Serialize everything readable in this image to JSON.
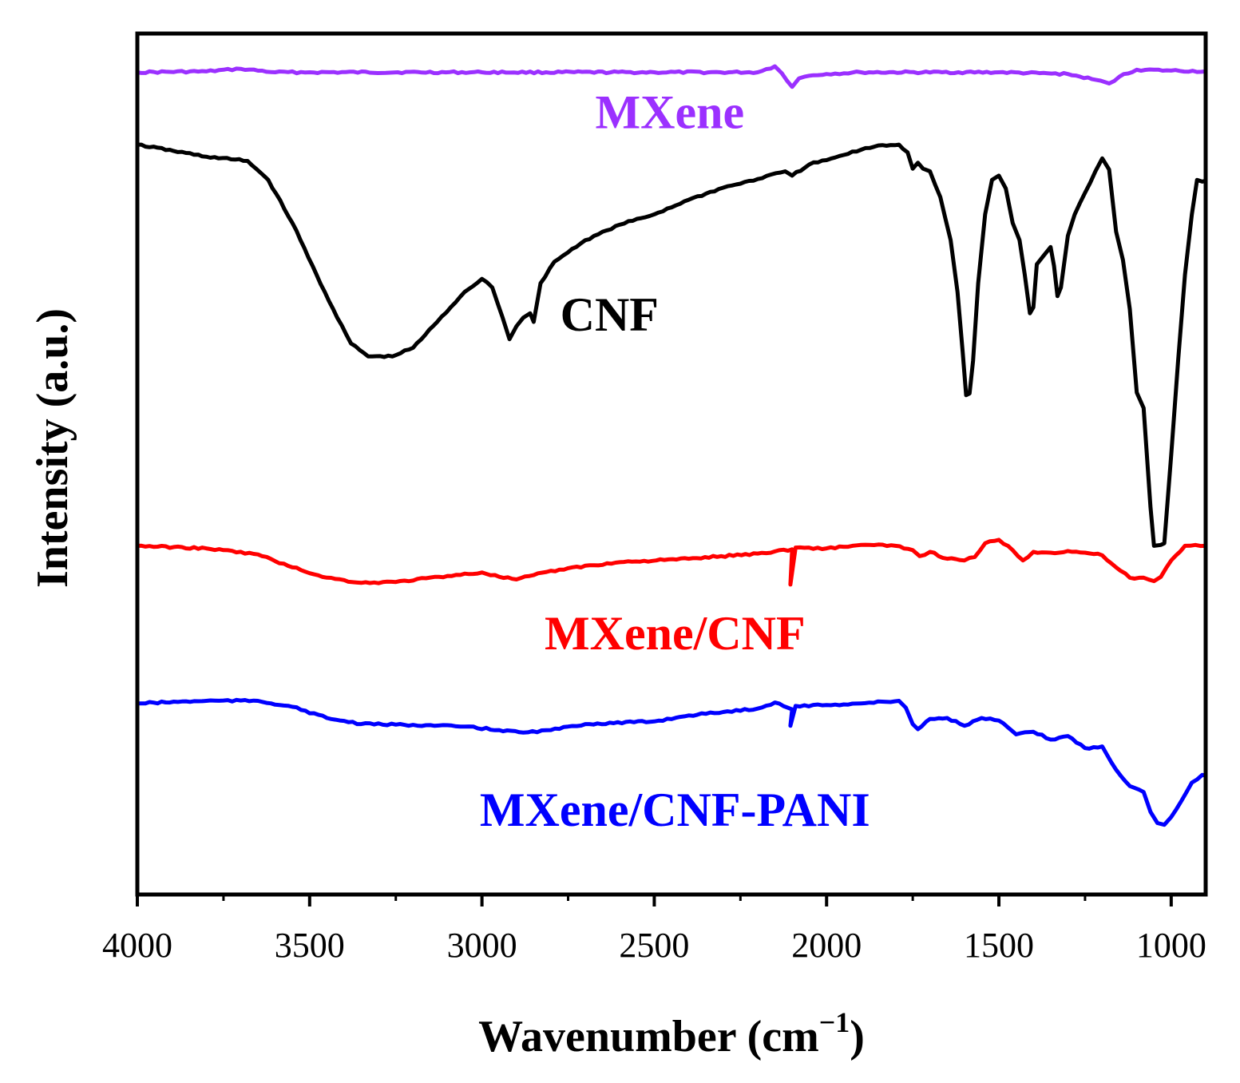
{
  "chart_data": {
    "type": "line",
    "title": "",
    "xlabel": "Wavenumber (cm",
    "xlabel_sup": "−1",
    "xlabel_close": ")",
    "ylabel": "Intensity (a.u.)",
    "xlim": [
      4000,
      900
    ],
    "x_reversed": true,
    "ylim": [
      0,
      100
    ],
    "y_ticks_visible": false,
    "grid": false,
    "legend": "inline labels",
    "x_ticks": [
      4000,
      3500,
      3000,
      2500,
      2000,
      1500,
      1000
    ],
    "x_tick_labels": [
      "4000",
      "3500",
      "3000",
      "2500",
      "2000",
      "1500",
      "1000"
    ],
    "series": [
      {
        "name": "MXene",
        "color": "#9b30ff",
        "label": "MXene",
        "label_x": 2455,
        "label_y": 89,
        "points": [
          [
            4000,
            95.5
          ],
          [
            3800,
            95.6
          ],
          [
            3700,
            95.9
          ],
          [
            3600,
            95.5
          ],
          [
            3500,
            95.5
          ],
          [
            3000,
            95.5
          ],
          [
            2500,
            95.5
          ],
          [
            2200,
            95.5
          ],
          [
            2150,
            96.2
          ],
          [
            2130,
            95.4
          ],
          [
            2100,
            93.8
          ],
          [
            2080,
            94.8
          ],
          [
            2050,
            95.1
          ],
          [
            2000,
            95.3
          ],
          [
            1900,
            95.5
          ],
          [
            1500,
            95.5
          ],
          [
            1300,
            95.3
          ],
          [
            1230,
            94.7
          ],
          [
            1180,
            94.2
          ],
          [
            1150,
            95.0
          ],
          [
            1100,
            95.8
          ],
          [
            1000,
            95.7
          ],
          [
            900,
            95.6
          ]
        ]
      },
      {
        "name": "CNF",
        "color": "#000000",
        "label": "CNF",
        "label_x": 2630,
        "label_y": 65.5,
        "points": [
          [
            4000,
            87.1
          ],
          [
            3800,
            85.7
          ],
          [
            3680,
            85.2
          ],
          [
            3620,
            83
          ],
          [
            3550,
            78
          ],
          [
            3480,
            72
          ],
          [
            3420,
            67
          ],
          [
            3380,
            64
          ],
          [
            3330,
            62.5
          ],
          [
            3260,
            62.5
          ],
          [
            3200,
            63.5
          ],
          [
            3130,
            66.5
          ],
          [
            3050,
            70
          ],
          [
            3000,
            71.5
          ],
          [
            2970,
            70.5
          ],
          [
            2940,
            67
          ],
          [
            2920,
            64.5
          ],
          [
            2900,
            66
          ],
          [
            2880,
            67
          ],
          [
            2860,
            67.5
          ],
          [
            2850,
            66.5
          ],
          [
            2830,
            71
          ],
          [
            2790,
            73.5
          ],
          [
            2700,
            76
          ],
          [
            2600,
            77.8
          ],
          [
            2500,
            79
          ],
          [
            2400,
            80.7
          ],
          [
            2300,
            82.1
          ],
          [
            2200,
            83.1
          ],
          [
            2120,
            84
          ],
          [
            2100,
            83.5
          ],
          [
            2050,
            84.8
          ],
          [
            2000,
            85.3
          ],
          [
            1950,
            85.9
          ],
          [
            1900,
            86.5
          ],
          [
            1850,
            87
          ],
          [
            1790,
            87.1
          ],
          [
            1765,
            86.2
          ],
          [
            1750,
            84.3
          ],
          [
            1735,
            85
          ],
          [
            1720,
            84.3
          ],
          [
            1700,
            84
          ],
          [
            1670,
            81
          ],
          [
            1640,
            76
          ],
          [
            1620,
            70
          ],
          [
            1605,
            63
          ],
          [
            1595,
            58
          ],
          [
            1585,
            58.2
          ],
          [
            1575,
            62
          ],
          [
            1560,
            71
          ],
          [
            1540,
            79
          ],
          [
            1520,
            83
          ],
          [
            1500,
            83.5
          ],
          [
            1480,
            82
          ],
          [
            1460,
            78
          ],
          [
            1440,
            76
          ],
          [
            1425,
            72
          ],
          [
            1410,
            67.5
          ],
          [
            1400,
            68.2
          ],
          [
            1390,
            73.2
          ],
          [
            1370,
            74.2
          ],
          [
            1350,
            75.2
          ],
          [
            1340,
            73
          ],
          [
            1330,
            69.5
          ],
          [
            1320,
            70.5
          ],
          [
            1300,
            76.5
          ],
          [
            1280,
            79
          ],
          [
            1250,
            81.5
          ],
          [
            1220,
            84
          ],
          [
            1200,
            85.5
          ],
          [
            1180,
            84.2
          ],
          [
            1160,
            77
          ],
          [
            1140,
            73.7
          ],
          [
            1120,
            68
          ],
          [
            1100,
            58.3
          ],
          [
            1080,
            56.5
          ],
          [
            1060,
            45
          ],
          [
            1050,
            40.5
          ],
          [
            1030,
            40.6
          ],
          [
            1020,
            40.8
          ],
          [
            1000,
            51
          ],
          [
            980,
            62
          ],
          [
            960,
            72
          ],
          [
            940,
            79
          ],
          [
            925,
            83
          ],
          [
            910,
            82.8
          ],
          [
            900,
            82.9
          ]
        ]
      },
      {
        "name": "MXene/CNF",
        "color": "#ff0000",
        "label": "MXene/CNF",
        "label_x": 2440,
        "label_y": 28.5,
        "points": [
          [
            4000,
            40.5
          ],
          [
            3800,
            40.2
          ],
          [
            3650,
            39.5
          ],
          [
            3550,
            38
          ],
          [
            3450,
            36.8
          ],
          [
            3350,
            36.2
          ],
          [
            3250,
            36.3
          ],
          [
            3100,
            37
          ],
          [
            3000,
            37.4
          ],
          [
            2950,
            36.9
          ],
          [
            2900,
            36.6
          ],
          [
            2850,
            37.1
          ],
          [
            2750,
            37.9
          ],
          [
            2600,
            38.6
          ],
          [
            2400,
            39
          ],
          [
            2200,
            39.6
          ],
          [
            2100,
            40.1
          ],
          [
            2105,
            36
          ],
          [
            2090,
            40.3
          ],
          [
            2000,
            40.2
          ],
          [
            1900,
            40.6
          ],
          [
            1800,
            40.5
          ],
          [
            1750,
            40
          ],
          [
            1730,
            39.3
          ],
          [
            1700,
            39.8
          ],
          [
            1650,
            39
          ],
          [
            1600,
            38.8
          ],
          [
            1570,
            39.2
          ],
          [
            1540,
            40.8
          ],
          [
            1500,
            41.2
          ],
          [
            1460,
            40
          ],
          [
            1430,
            38.8
          ],
          [
            1400,
            39.8
          ],
          [
            1350,
            39.7
          ],
          [
            1300,
            39.9
          ],
          [
            1250,
            39.7
          ],
          [
            1200,
            39.4
          ],
          [
            1160,
            38
          ],
          [
            1120,
            36.8
          ],
          [
            1080,
            36.8
          ],
          [
            1050,
            36.4
          ],
          [
            1030,
            36.9
          ],
          [
            1000,
            38.8
          ],
          [
            960,
            40.5
          ],
          [
            930,
            40.6
          ],
          [
            900,
            40.5
          ]
        ]
      },
      {
        "name": "MXene/CNF-PANI",
        "color": "#0000ff",
        "label": "MXene/CNF-PANI",
        "label_x": 2440,
        "label_y": 8,
        "points": [
          [
            4000,
            22.2
          ],
          [
            3800,
            22.5
          ],
          [
            3650,
            22.5
          ],
          [
            3550,
            21.8
          ],
          [
            3450,
            20.5
          ],
          [
            3350,
            19.8
          ],
          [
            3200,
            19.7
          ],
          [
            3050,
            19.5
          ],
          [
            2950,
            19.1
          ],
          [
            2880,
            18.8
          ],
          [
            2800,
            19.1
          ],
          [
            2700,
            19.8
          ],
          [
            2500,
            20.1
          ],
          [
            2400,
            20.8
          ],
          [
            2300,
            21.2
          ],
          [
            2200,
            21.6
          ],
          [
            2150,
            22.3
          ],
          [
            2100,
            21.5
          ],
          [
            2105,
            19.6
          ],
          [
            2090,
            21.9
          ],
          [
            2000,
            22
          ],
          [
            1900,
            22.2
          ],
          [
            1790,
            22.5
          ],
          [
            1770,
            21.7
          ],
          [
            1750,
            19.8
          ],
          [
            1735,
            19.2
          ],
          [
            1700,
            20.4
          ],
          [
            1650,
            20.5
          ],
          [
            1600,
            19.6
          ],
          [
            1550,
            20.5
          ],
          [
            1500,
            20.2
          ],
          [
            1450,
            18.6
          ],
          [
            1400,
            18.9
          ],
          [
            1350,
            18
          ],
          [
            1300,
            18.4
          ],
          [
            1250,
            17
          ],
          [
            1200,
            17.2
          ],
          [
            1160,
            14.5
          ],
          [
            1120,
            12.6
          ],
          [
            1080,
            11.9
          ],
          [
            1060,
            9.6
          ],
          [
            1040,
            8.3
          ],
          [
            1020,
            8.1
          ],
          [
            1000,
            9
          ],
          [
            970,
            10.9
          ],
          [
            940,
            13
          ],
          [
            910,
            13.9
          ],
          [
            900,
            13.8
          ]
        ]
      }
    ]
  }
}
